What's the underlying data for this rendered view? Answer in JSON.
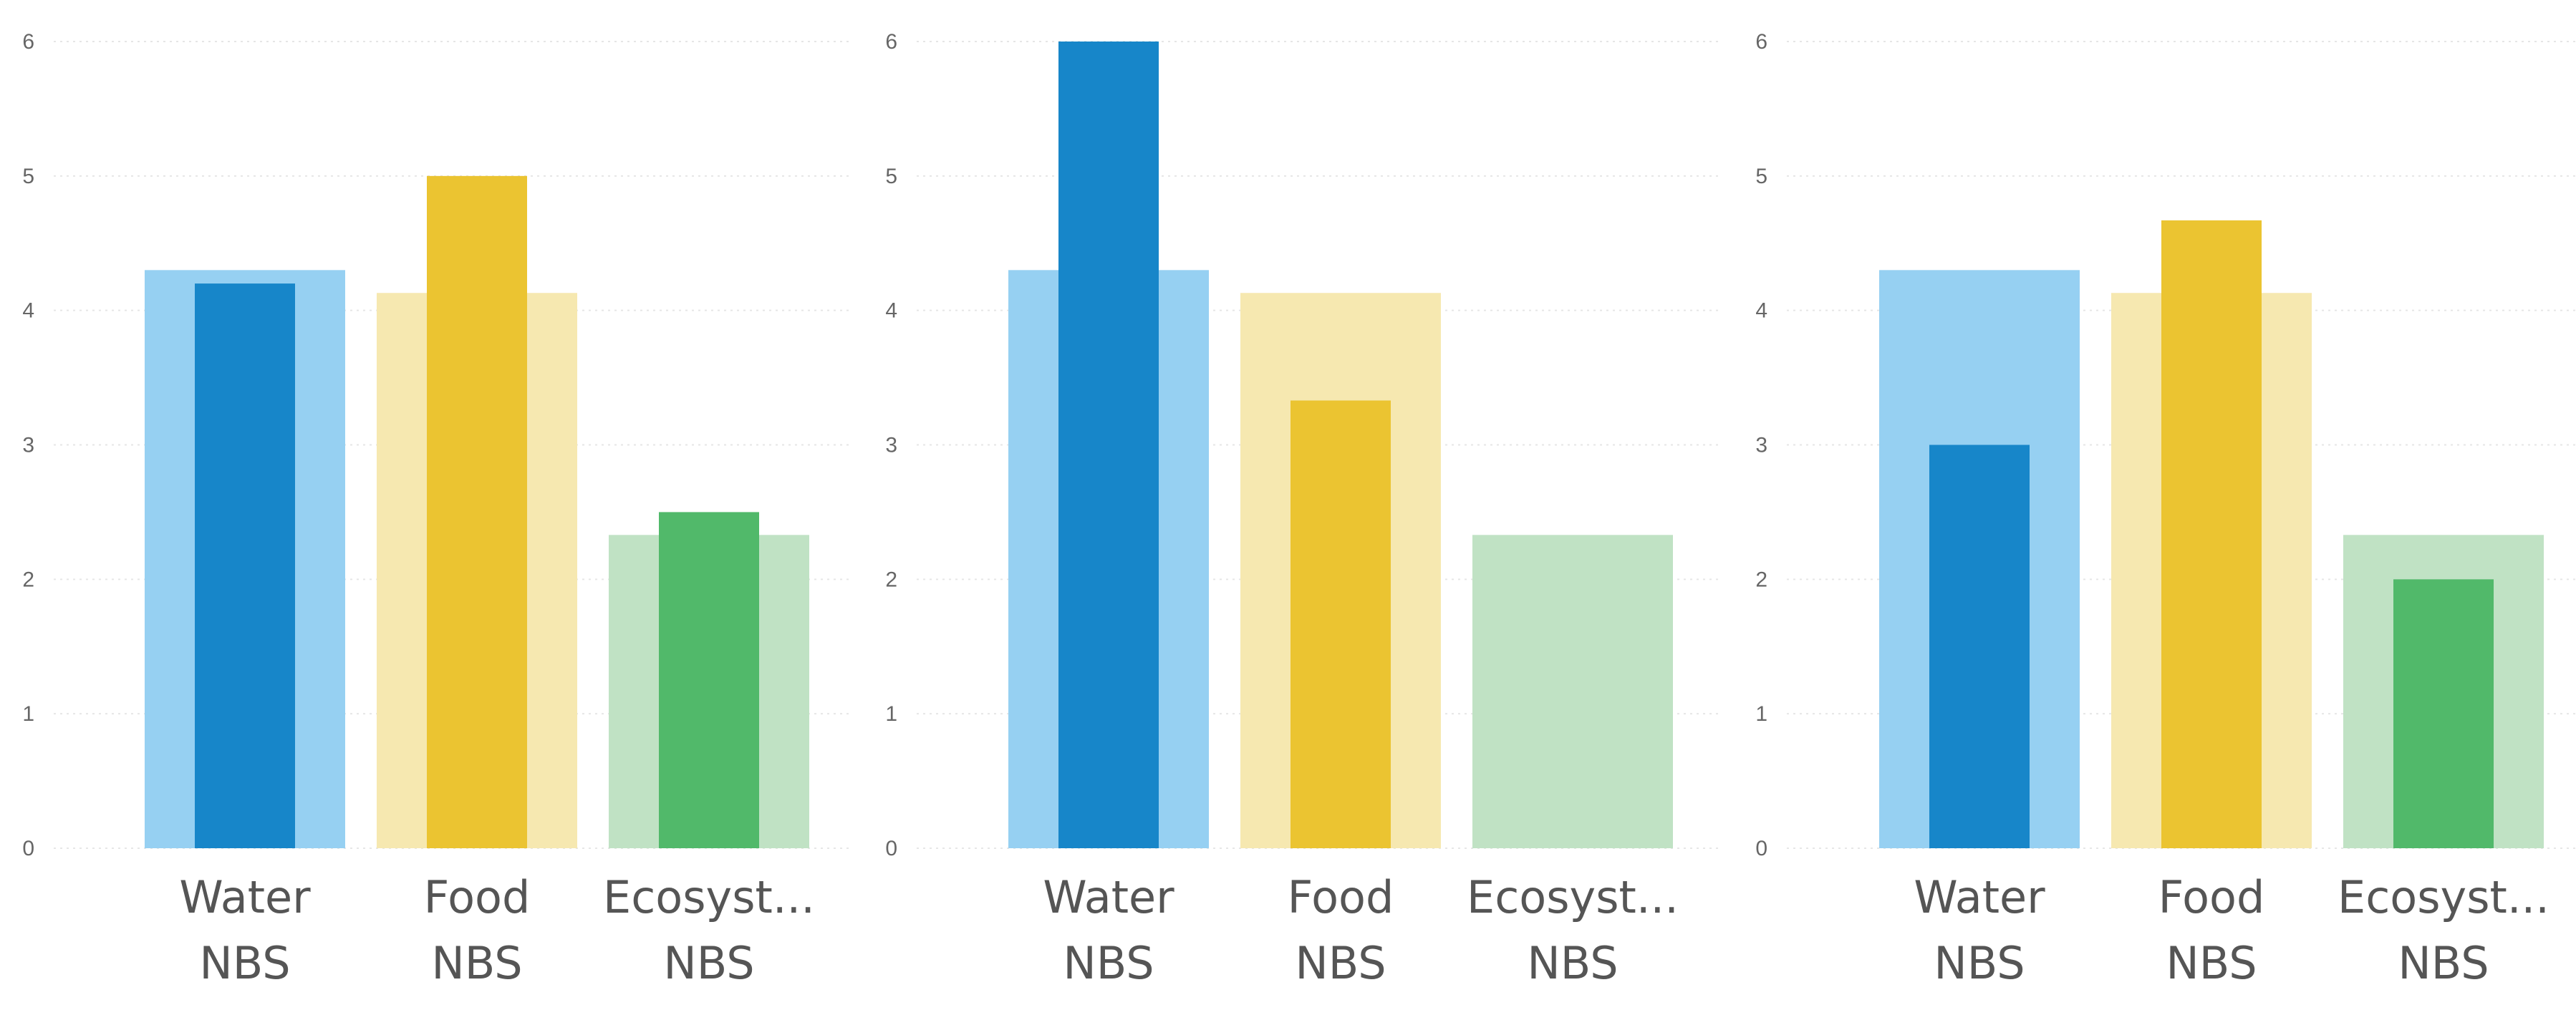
{
  "chart_data": [
    {
      "type": "bar",
      "categories": [
        [
          "Water",
          "NBS"
        ],
        [
          "Food",
          "NBS"
        ],
        [
          "Ecosyst...",
          "NBS"
        ]
      ],
      "ylim": [
        0,
        6
      ],
      "yticks": [
        "0",
        "1",
        "2",
        "3",
        "4",
        "5",
        "6"
      ],
      "grid": true,
      "series": [
        {
          "values": [
            4.3,
            4.13,
            2.33
          ],
          "colors": [
            "#96d0f2",
            "#f6e8b0",
            "#c0e2c4"
          ]
        },
        {
          "values": [
            4.2,
            5.0,
            2.5
          ],
          "colors": [
            "#1786c9",
            "#ebc431",
            "#51b96a"
          ]
        }
      ]
    },
    {
      "type": "bar",
      "categories": [
        [
          "Water",
          "NBS"
        ],
        [
          "Food",
          "NBS"
        ],
        [
          "Ecosyst...",
          "NBS"
        ]
      ],
      "ylim": [
        0,
        6
      ],
      "yticks": [
        "0",
        "1",
        "2",
        "3",
        "4",
        "5",
        "6"
      ],
      "grid": true,
      "series": [
        {
          "values": [
            4.3,
            4.13,
            2.33
          ],
          "colors": [
            "#96d0f2",
            "#f6e8b0",
            "#c0e2c4"
          ]
        },
        {
          "values": [
            6.0,
            3.33,
            0
          ],
          "colors": [
            "#1786c9",
            "#ebc431",
            "#51b96a"
          ]
        }
      ]
    },
    {
      "type": "bar",
      "categories": [
        [
          "Water",
          "NBS"
        ],
        [
          "Food",
          "NBS"
        ],
        [
          "Ecosyst...",
          "NBS"
        ]
      ],
      "ylim": [
        0,
        6
      ],
      "yticks": [
        "0",
        "1",
        "2",
        "3",
        "4",
        "5",
        "6"
      ],
      "grid": true,
      "series": [
        {
          "values": [
            4.3,
            4.13,
            2.33
          ],
          "colors": [
            "#96d0f2",
            "#f6e8b0",
            "#c0e2c4"
          ]
        },
        {
          "values": [
            3.0,
            4.67,
            2.0
          ],
          "colors": [
            "#1786c9",
            "#ebc431",
            "#51b96a"
          ]
        }
      ]
    }
  ]
}
